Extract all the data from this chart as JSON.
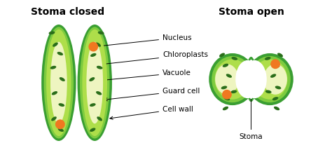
{
  "title_closed": "Stoma closed",
  "title_open": "Stoma open",
  "bg_color": "#ffffff",
  "dark_green": "#3a9e32",
  "mid_green": "#7ecb3f",
  "light_green": "#aede4a",
  "vacuole_color": "#eef5c0",
  "nucleus_color": "#f07820",
  "chloroplast_color": "#2a6e1a",
  "label_nucleus": "Nucleus",
  "label_chloroplasts": "Chloroplasts",
  "label_vacuole": "Vacuole",
  "label_guard_cell": "Guard cell",
  "label_cell_wall": "Cell wall",
  "label_stoma": "Stoma",
  "title_fontsize": 10,
  "label_fontsize": 7.5
}
